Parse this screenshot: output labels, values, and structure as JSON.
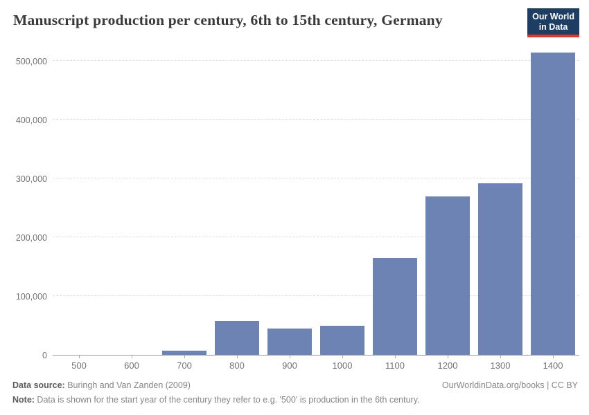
{
  "header": {
    "title": "Manuscript production per century, 6th to 15th century, Germany",
    "logo_line1": "Our World",
    "logo_line2": "in Data"
  },
  "footer": {
    "data_source_label": "Data source:",
    "data_source_text": " Buringh and Van Zanden (2009)",
    "link_text": "OurWorldinData.org/books | CC BY",
    "note_label": "Note:",
    "note_text": " Data is shown for the start year of the century they refer to e.g. '500' is production in the 6th century."
  },
  "colors": {
    "bar": "#6c83b4",
    "title_text": "#3a3a3a",
    "axis_text": "#737373",
    "gridline": "#dedede",
    "axis_line": "#9a9a9a",
    "logo_bg": "#1d3d63",
    "logo_underline": "#e0372c",
    "footer_text": "#868686"
  },
  "chart_data": {
    "type": "bar",
    "title": "Manuscript production per century, 6th to 15th century, Germany",
    "categories": [
      "500",
      "600",
      "700",
      "800",
      "900",
      "1000",
      "1100",
      "1200",
      "1300",
      "1400"
    ],
    "values": [
      0,
      0,
      7000,
      58000,
      45000,
      49000,
      165000,
      269000,
      292000,
      514000
    ],
    "xlabel": "",
    "ylabel": "",
    "ylim": [
      0,
      500000
    ],
    "yticks": [
      0,
      100000,
      200000,
      300000,
      400000,
      500000
    ],
    "ytick_labels": [
      "0",
      "100,000",
      "200,000",
      "300,000",
      "400,000",
      "500,000"
    ],
    "grid": "horizontal-dashed",
    "legend": "none"
  }
}
